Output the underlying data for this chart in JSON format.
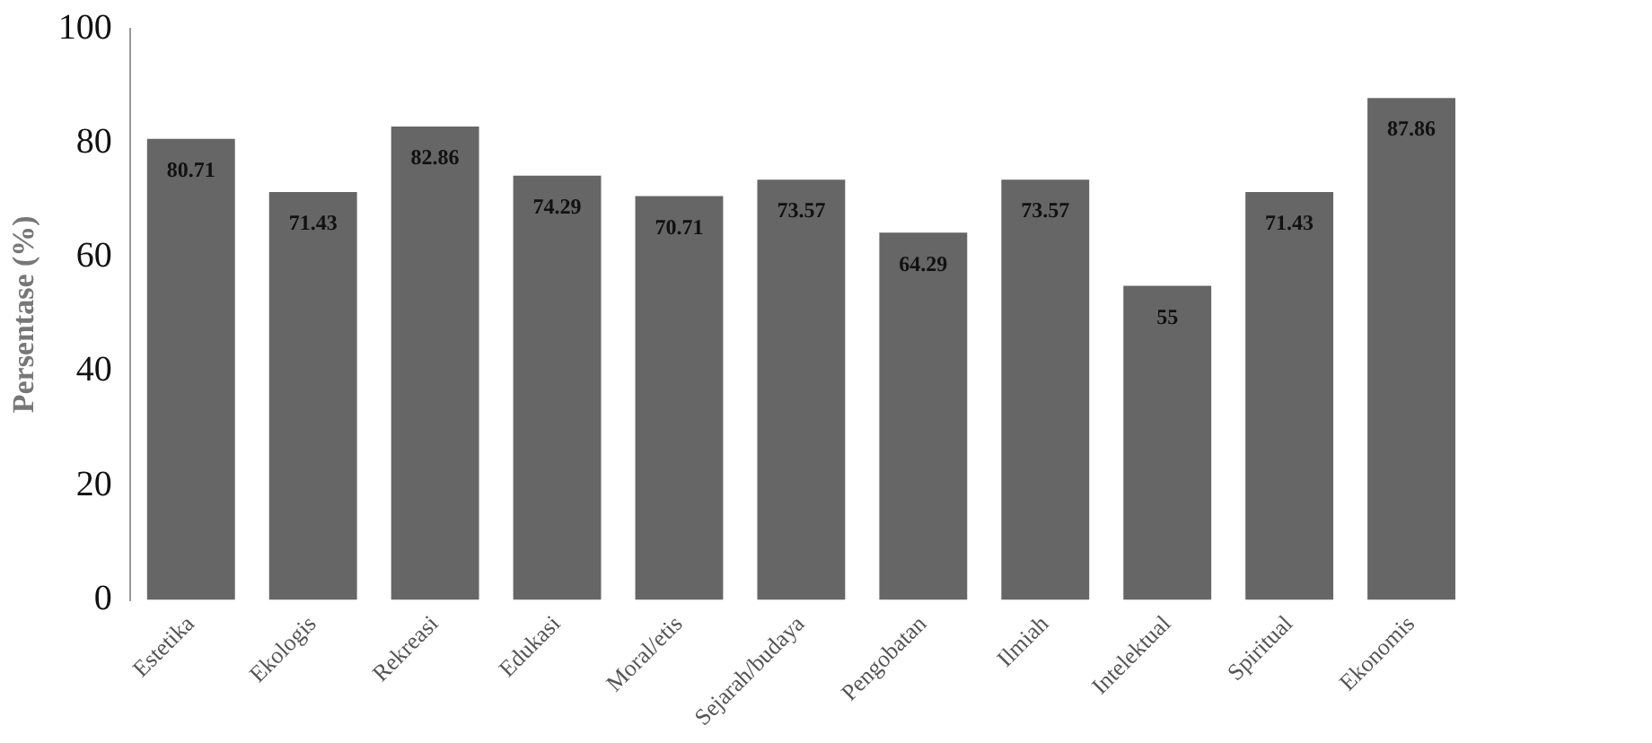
{
  "chart_data": {
    "type": "bar",
    "ylabel": "Persentase (%)",
    "categories": [
      "Estetika",
      "Ekologis",
      "Rekreasi",
      "Edukasi",
      "Moral/etis",
      "Sejarah/budaya",
      "Pengobatan",
      "Ilmiah",
      "Intelektual",
      "Spiritual",
      "Ekonomis"
    ],
    "values": [
      80.71,
      71.43,
      82.86,
      74.29,
      70.71,
      73.57,
      64.29,
      73.57,
      55,
      71.43,
      87.86
    ],
    "color": "#666666",
    "ylim": [
      0,
      100
    ],
    "yticks": [
      0,
      20,
      40,
      60,
      80,
      100
    ],
    "grid": false,
    "legend": false,
    "data_labels": true
  }
}
